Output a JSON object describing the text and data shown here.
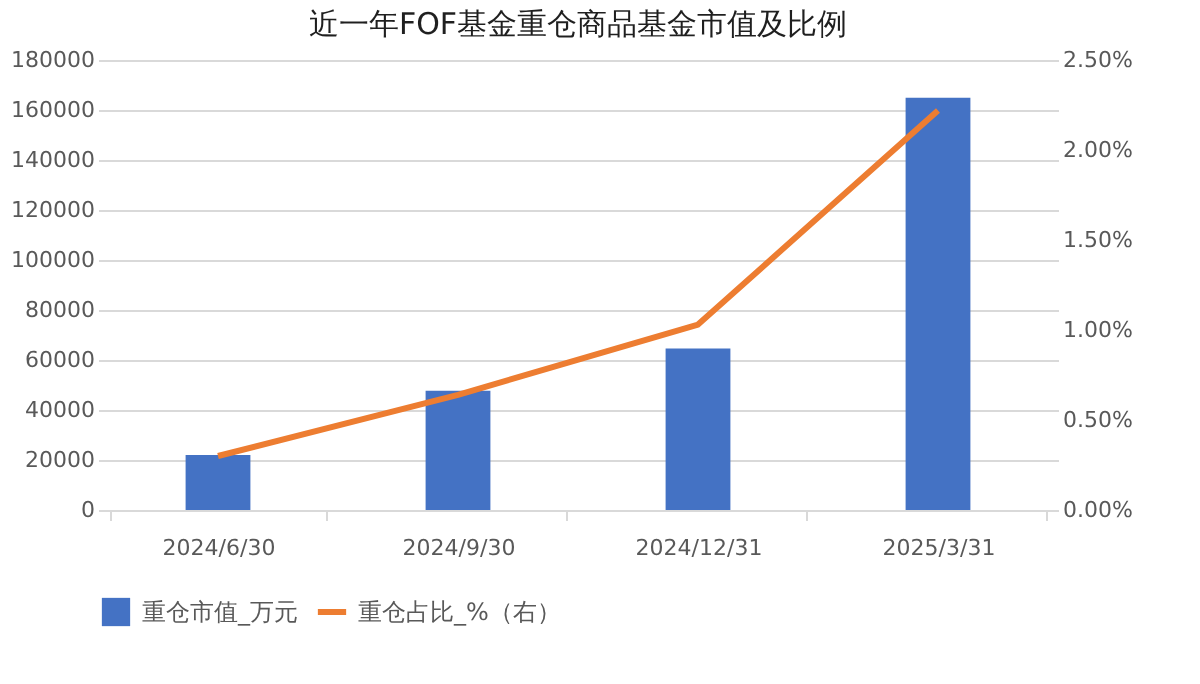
{
  "chart_data": {
    "type": "bar",
    "title": "近一年FOF基金重仓商品基金市值及比例",
    "categories": [
      "2024/6/30",
      "2024/9/30",
      "2024/12/31",
      "2025/3/31"
    ],
    "series": [
      {
        "name": "重仓市值_万元",
        "color": "#4472c4",
        "values": [
          22000,
          47700,
          64600,
          164900
        ]
      },
      {
        "name": "重仓占比_%（右）",
        "type": "line",
        "axis": "y2",
        "color": "#ed7d31",
        "values": [
          0.3,
          0.64,
          1.03,
          2.22
        ]
      }
    ],
    "ylim": [
      0,
      180000
    ],
    "yticks": [
      0,
      20000,
      40000,
      60000,
      80000,
      100000,
      120000,
      140000,
      160000,
      180000
    ],
    "y2lim": [
      0,
      2.5
    ],
    "y2ticks": [
      {
        "value": 0,
        "label": "0.00%"
      },
      {
        "value": 0.5,
        "label": "0.50%"
      },
      {
        "value": 1,
        "label": "1.00%"
      },
      {
        "value": 1.5,
        "label": "1.50%"
      },
      {
        "value": 2,
        "label": "2.00%"
      },
      {
        "value": 2.5,
        "label": "2.50%"
      }
    ],
    "grid": "y",
    "legend": "bottom",
    "marker": "none",
    "line_style": "solid"
  }
}
